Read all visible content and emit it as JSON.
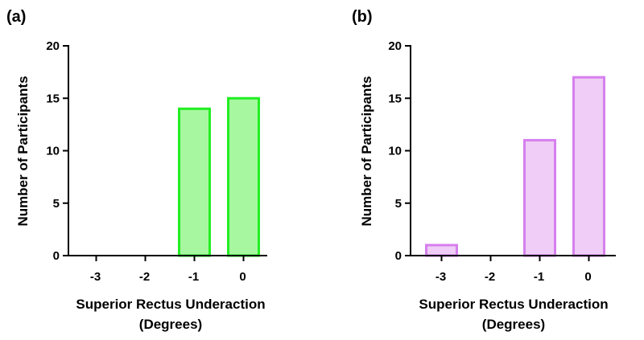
{
  "chart_data": [
    {
      "type": "bar",
      "panel_label": "(a)",
      "categories": [
        "-3",
        "-2",
        "-1",
        "0"
      ],
      "values": [
        0,
        0,
        14,
        15
      ],
      "xlabel": [
        "Superior Rectus Underaction",
        "(Degrees)"
      ],
      "ylabel": "Number of Participants",
      "ylim": [
        0,
        20
      ],
      "yticks": [
        "0",
        "5",
        "10",
        "15",
        "20"
      ],
      "grid": false,
      "colors": {
        "fill": "#a6f7a0",
        "stroke": "#22ee22"
      }
    },
    {
      "type": "bar",
      "panel_label": "(b)",
      "categories": [
        "-3",
        "-2",
        "-1",
        "0"
      ],
      "values": [
        1,
        0,
        11,
        17
      ],
      "xlabel": [
        "Superior Rectus Underaction",
        "(Degrees)"
      ],
      "ylabel": "Number of Participants",
      "ylim": [
        0,
        20
      ],
      "yticks": [
        "0",
        "5",
        "10",
        "15",
        "20"
      ],
      "grid": false,
      "colors": {
        "fill": "#efcdf6",
        "stroke": "#d67fee"
      }
    }
  ]
}
